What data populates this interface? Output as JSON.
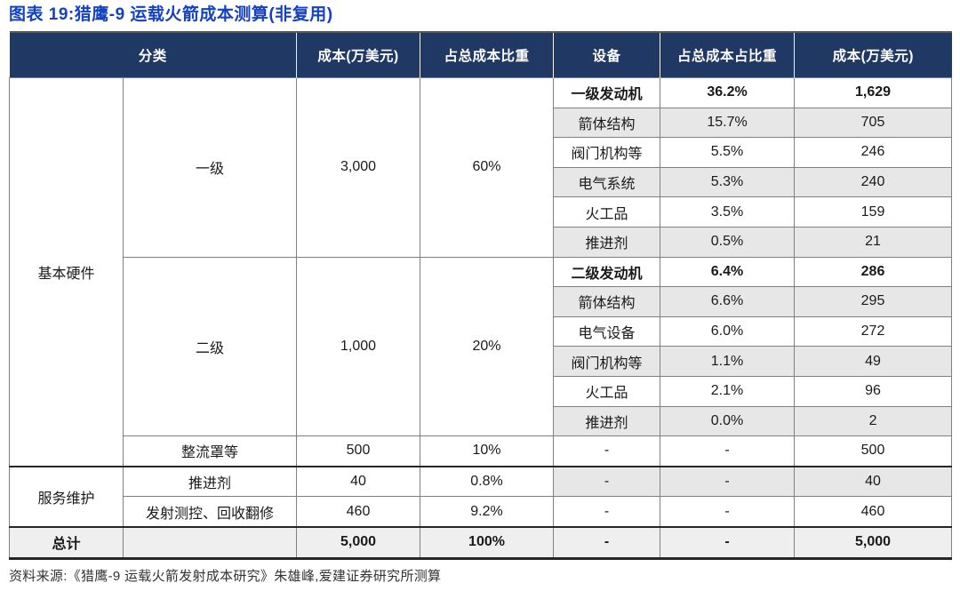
{
  "title": "图表 19:猎鹰-9 运载火箭成本测算(非复用)",
  "source": "资料来源:《猎鹰-9 运载火箭发射成本研究》朱雄峰,爱建证券研究所测算",
  "colors": {
    "title_blue": "#1442C0",
    "header_bg": "#1F3864",
    "header_text": "#FFFFFF",
    "row_shade": "#E7E7E7",
    "total_shade": "#EFEFEF",
    "grid_line": "#808080",
    "section_line": "#262626"
  },
  "header": {
    "category": "分类",
    "cost": "成本(万美元)",
    "share": "占总成本比重",
    "device": "设备",
    "device_share": "占总成本占比重",
    "device_cost": "成本(万美元)"
  },
  "merged": {
    "hardware": "基本硬件",
    "service": "服务维护",
    "total": "总计",
    "stage1": {
      "b": "一级",
      "c": "3,000",
      "d": "60%"
    },
    "stage2": {
      "b": "二级",
      "c": "1,000",
      "d": "20%"
    }
  },
  "rows": [
    {
      "e": "一级发动机",
      "f": "36.2%",
      "g": "1,629"
    },
    {
      "e": "箭体结构",
      "f": "15.7%",
      "g": "705"
    },
    {
      "e": "阀门机构等",
      "f": "5.5%",
      "g": "246"
    },
    {
      "e": "电气系统",
      "f": "5.3%",
      "g": "240"
    },
    {
      "e": "火工品",
      "f": "3.5%",
      "g": "159"
    },
    {
      "e": "推进剂",
      "f": "0.5%",
      "g": "21"
    },
    {
      "e": "二级发动机",
      "f": "6.4%",
      "g": "286"
    },
    {
      "e": "箭体结构",
      "f": "6.6%",
      "g": "295"
    },
    {
      "e": "电气设备",
      "f": "6.0%",
      "g": "272"
    },
    {
      "e": "阀门机构等",
      "f": "1.1%",
      "g": "49"
    },
    {
      "e": "火工品",
      "f": "2.1%",
      "g": "96"
    },
    {
      "e": "推进剂",
      "f": "0.0%",
      "g": "2"
    },
    {
      "b": "整流罩等",
      "c": "500",
      "d": "10%",
      "e": "-",
      "f": "-",
      "g": "500"
    },
    {
      "b": "推进剂",
      "c": "40",
      "d": "0.8%",
      "e": "-",
      "f": "-",
      "g": "40"
    },
    {
      "b": "发射测控、回收翻修",
      "c": "460",
      "d": "9.2%",
      "e": "-",
      "f": "-",
      "g": "460"
    },
    {
      "b": "",
      "c": "5,000",
      "d": "100%",
      "e": "-",
      "f": "-",
      "g": "5,000"
    }
  ]
}
